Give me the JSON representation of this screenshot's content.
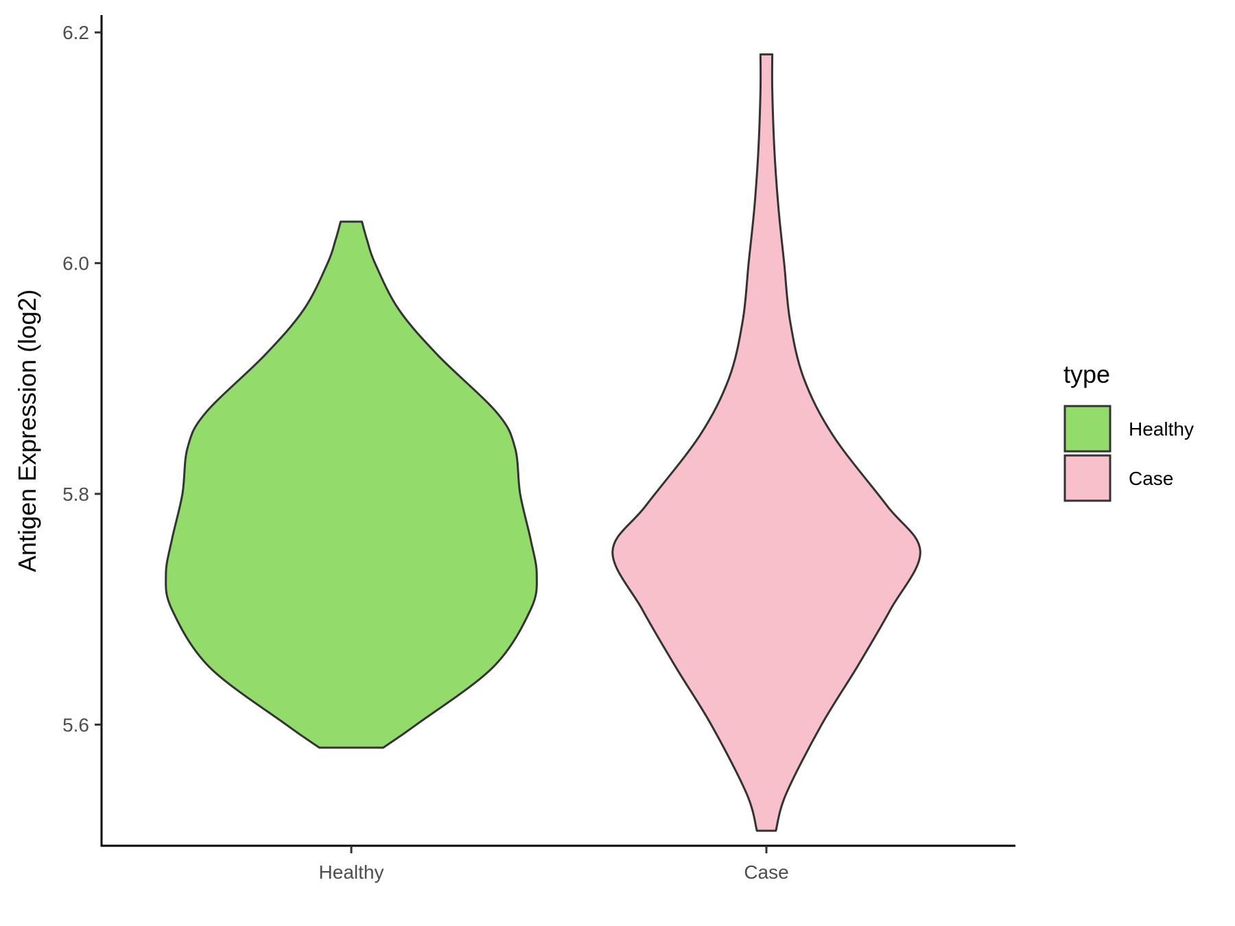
{
  "chart_data": {
    "type": "violin",
    "title": "",
    "xlabel": "",
    "ylabel": "Antigen Expression (log2)",
    "ylim": [
      5.495,
      6.215
    ],
    "yticks": [
      5.6,
      5.8,
      6.0,
      6.2
    ],
    "ytick_labels": [
      "5.6",
      "5.8",
      "6.0",
      "6.2"
    ],
    "categories": [
      "Healthy",
      "Case"
    ],
    "grid": false,
    "legend": {
      "title": "type",
      "position": "right",
      "entries": [
        {
          "label": "Healthy",
          "color": "#93DB6B"
        },
        {
          "label": "Case",
          "color": "#F8C0CB"
        }
      ]
    },
    "series": [
      {
        "category": "Healthy",
        "color": "#93DB6B",
        "min": 5.58,
        "max": 6.036,
        "density": [
          [
            5.58,
            0.081
          ],
          [
            5.6,
            0.165
          ],
          [
            5.65,
            0.36
          ],
          [
            5.7,
            0.455
          ],
          [
            5.73,
            0.47
          ],
          [
            5.76,
            0.455
          ],
          [
            5.8,
            0.428
          ],
          [
            5.84,
            0.415
          ],
          [
            5.87,
            0.37
          ],
          [
            5.92,
            0.22
          ],
          [
            5.96,
            0.12
          ],
          [
            6.0,
            0.06
          ],
          [
            6.02,
            0.04
          ],
          [
            6.036,
            0.027
          ]
        ]
      },
      {
        "category": "Case",
        "color": "#F8C0CB",
        "min": 5.508,
        "max": 6.181,
        "density": [
          [
            5.508,
            0.024
          ],
          [
            5.54,
            0.05
          ],
          [
            5.6,
            0.14
          ],
          [
            5.65,
            0.23
          ],
          [
            5.7,
            0.315
          ],
          [
            5.75,
            0.39
          ],
          [
            5.79,
            0.305
          ],
          [
            5.85,
            0.17
          ],
          [
            5.9,
            0.095
          ],
          [
            5.95,
            0.06
          ],
          [
            6.0,
            0.045
          ],
          [
            6.05,
            0.03
          ],
          [
            6.1,
            0.02
          ],
          [
            6.15,
            0.015
          ],
          [
            6.181,
            0.015
          ]
        ]
      }
    ]
  }
}
